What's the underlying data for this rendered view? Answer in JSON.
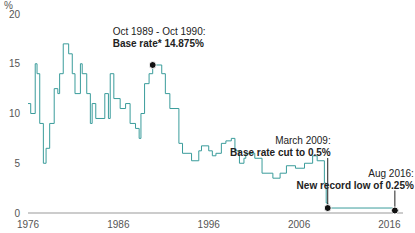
{
  "chart_data": {
    "type": "line",
    "line_style": "step",
    "color": "#3a9c9b",
    "grid": false,
    "y_unit_label": "%",
    "xlim": [
      1976,
      2017.5
    ],
    "xticks": [
      1976,
      1986,
      1996,
      2006,
      2016
    ],
    "ylim": [
      0,
      20
    ],
    "yticks": [
      0,
      5,
      10,
      15,
      20
    ],
    "x": [
      1976.0,
      1976.3,
      1976.8,
      1977.0,
      1977.3,
      1977.7,
      1978.0,
      1978.4,
      1978.9,
      1979.3,
      1979.5,
      1979.9,
      1980.5,
      1980.9,
      1981.2,
      1981.8,
      1982.0,
      1982.5,
      1982.9,
      1983.1,
      1983.5,
      1984.5,
      1984.9,
      1985.1,
      1985.5,
      1986.2,
      1986.8,
      1987.3,
      1987.9,
      1988.3,
      1988.5,
      1988.9,
      1989.4,
      1989.8,
      1990.8,
      1991.2,
      1991.7,
      1992.7,
      1993.1,
      1994.1,
      1994.9,
      1995.2,
      1996.0,
      1996.4,
      1996.8,
      1997.4,
      1997.9,
      1998.5,
      1998.9,
      1999.4,
      1999.9,
      2000.1,
      2001.1,
      2001.9,
      2003.1,
      2003.9,
      2004.6,
      2005.6,
      2006.6,
      2007.5,
      2008.0,
      2008.8,
      2009.0,
      2009.17,
      2016.6,
      2017.0
    ],
    "values": [
      11.0,
      10.0,
      15.0,
      14.0,
      9.0,
      5.0,
      6.5,
      9.0,
      12.5,
      12.0,
      14.0,
      17.0,
      16.0,
      14.0,
      12.0,
      15.0,
      14.0,
      12.0,
      9.0,
      11.0,
      9.5,
      12.0,
      9.5,
      14.0,
      11.5,
      10.5,
      11.0,
      9.0,
      8.5,
      7.5,
      10.0,
      13.0,
      14.0,
      14.875,
      14.0,
      12.0,
      10.5,
      7.0,
      6.0,
      5.25,
      6.25,
      6.75,
      6.25,
      5.75,
      6.0,
      7.0,
      7.25,
      7.5,
      6.25,
      5.0,
      5.5,
      6.0,
      5.5,
      4.0,
      3.5,
      4.0,
      4.75,
      4.5,
      5.0,
      5.75,
      5.25,
      3.0,
      1.0,
      0.5,
      0.25,
      0.25
    ],
    "annotations": [
      {
        "x": 1989.8,
        "y": 14.875,
        "text": [
          "Oct 1989 - Oct 1990:",
          "Base rate* 14.875%"
        ]
      },
      {
        "x": 2009.17,
        "y": 0.5,
        "text": [
          "March 2009:",
          "Base rate cut to 0.5%"
        ]
      },
      {
        "x": 2016.6,
        "y": 0.25,
        "text": [
          "Aug 2016:",
          "New record low of 0.25%"
        ]
      }
    ]
  }
}
